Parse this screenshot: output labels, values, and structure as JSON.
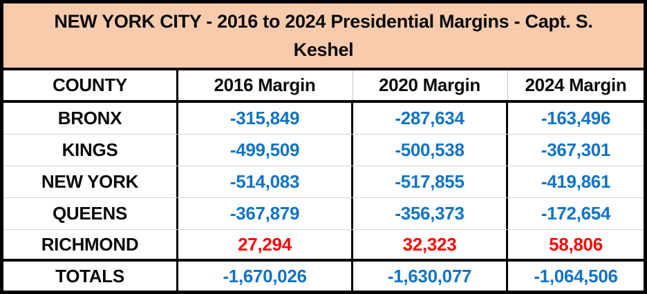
{
  "title": "NEW YORK CITY -  2016 to 2024 Presidential Margins - Capt. S. Keshel",
  "colors": {
    "title_background": "#F8CBAD",
    "negative_margin_text": "#1173C4",
    "positive_margin_text": "#FE0505",
    "border": "#000000",
    "row_divider": "#D2D2D2"
  },
  "table": {
    "columns": {
      "county": "COUNTY",
      "m2016": "2016 Margin",
      "m2020": "2020 Margin",
      "m2024": "2024 Margin"
    },
    "rows": [
      {
        "county": "BRONX",
        "m2016": "-315,849",
        "m2020": "-287,634",
        "m2024": "-163,496"
      },
      {
        "county": "KINGS",
        "m2016": "-499,509",
        "m2020": "-500,538",
        "m2024": "-367,301"
      },
      {
        "county": "NEW YORK",
        "m2016": "-514,083",
        "m2020": "-517,855",
        "m2024": "-419,861"
      },
      {
        "county": "QUEENS",
        "m2016": "-367,879",
        "m2020": "-356,373",
        "m2024": "-172,654"
      },
      {
        "county": "RICHMOND",
        "m2016": "27,294",
        "m2020": "32,323",
        "m2024": "58,806"
      }
    ],
    "totals": {
      "county": "TOTALS",
      "m2016": "-1,670,026",
      "m2020": "-1,630,077",
      "m2024": "-1,064,506"
    }
  },
  "chart_data": {
    "type": "table",
    "title": "NEW YORK CITY -  2016 to 2024 Presidential Margins - Capt. S. Keshel",
    "columns": [
      "COUNTY",
      "2016 Margin",
      "2020 Margin",
      "2024 Margin"
    ],
    "rows": [
      [
        "BRONX",
        -315849,
        -287634,
        -163496
      ],
      [
        "KINGS",
        -499509,
        -500538,
        -367301
      ],
      [
        "NEW YORK",
        -514083,
        -517855,
        -419861
      ],
      [
        "QUEENS",
        -367879,
        -356373,
        -172654
      ],
      [
        "RICHMOND",
        27294,
        32323,
        58806
      ],
      [
        "TOTALS",
        -1670026,
        -1630077,
        -1064506
      ]
    ],
    "notes": "Negative margins rendered in blue, positive margins rendered in red"
  }
}
